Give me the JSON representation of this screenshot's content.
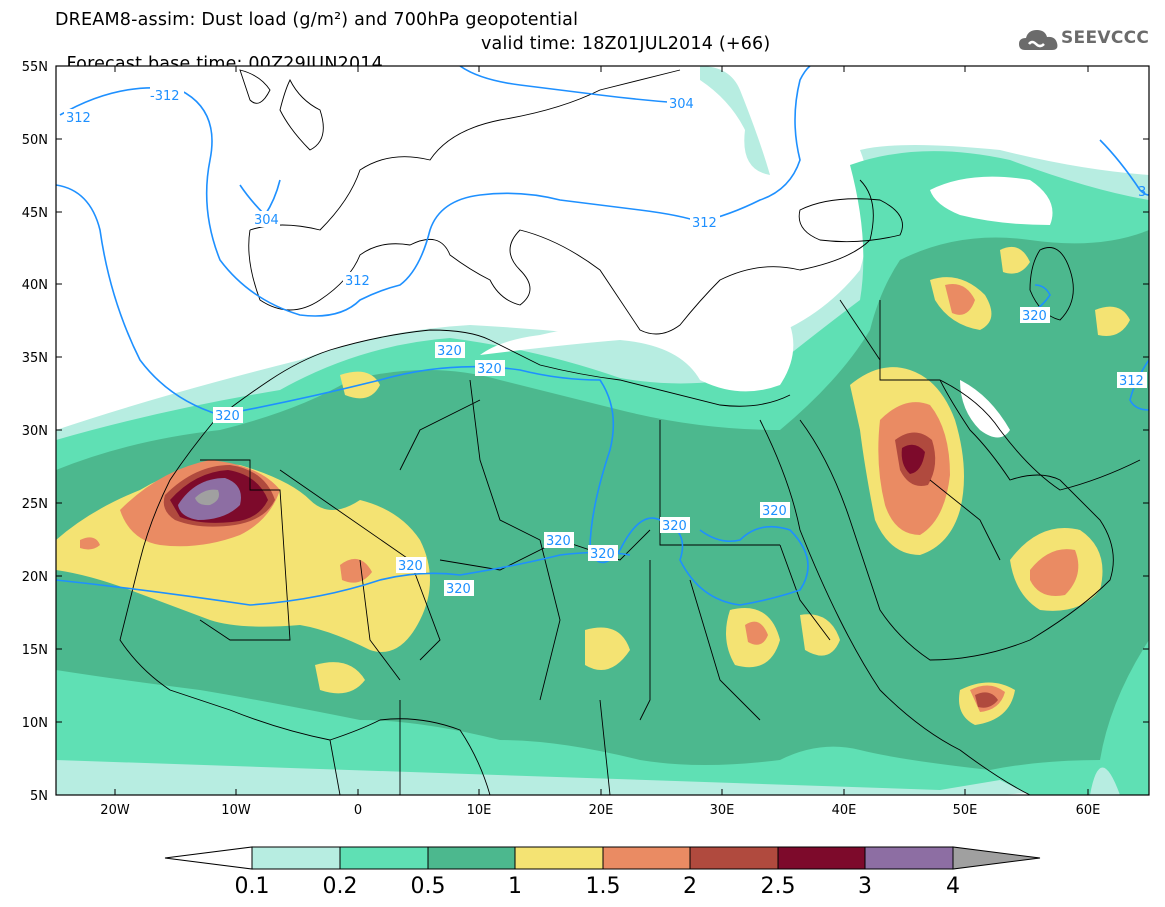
{
  "title": {
    "line1": "DREAM8-assim: Dust load (g/m²) and 700hPa geopotential",
    "line2_left": "Forecast base time: 00Z29JUN2014",
    "line2_right": "valid time: 18Z01JUL2014 (+66)"
  },
  "logo": {
    "text": "SEEVCCC",
    "icon": "cloud-icon"
  },
  "axes": {
    "lat_labels": [
      "55N",
      "50N",
      "45N",
      "40N",
      "35N",
      "30N",
      "25N",
      "20N",
      "15N",
      "10N",
      "5N"
    ],
    "lon_labels": [
      "20W",
      "10W",
      "0",
      "10E",
      "20E",
      "30E",
      "40E",
      "50E",
      "60E"
    ]
  },
  "contours": {
    "color": "#1e90ff",
    "labels": [
      "312",
      "-312",
      "304",
      "304",
      "312",
      "312",
      "320",
      "320",
      "320",
      "320",
      "320",
      "320",
      "320",
      "320",
      "320",
      "320",
      "312",
      "3"
    ]
  },
  "colorbar": {
    "levels": [
      "0.1",
      "0.2",
      "0.5",
      "1",
      "1.5",
      "2",
      "2.5",
      "3",
      "4"
    ],
    "colors": [
      "#b7ede1",
      "#5fe0b4",
      "#4cb88e",
      "#f4e373",
      "#ea8b63",
      "#b04a3e",
      "#7d0a2b",
      "#8d6ea3",
      "#a0a0a0"
    ]
  },
  "colors": {
    "ocean": "#ffffff",
    "c01": "#b7ede1",
    "c02": "#5fe0b4",
    "c05": "#4cb88e",
    "c1": "#f4e373",
    "c15": "#ea8b63",
    "c2": "#b04a3e",
    "c25": "#7d0a2b",
    "c3": "#8d6ea3",
    "c4": "#a0a0a0",
    "geopotential": "#1e90ff"
  }
}
